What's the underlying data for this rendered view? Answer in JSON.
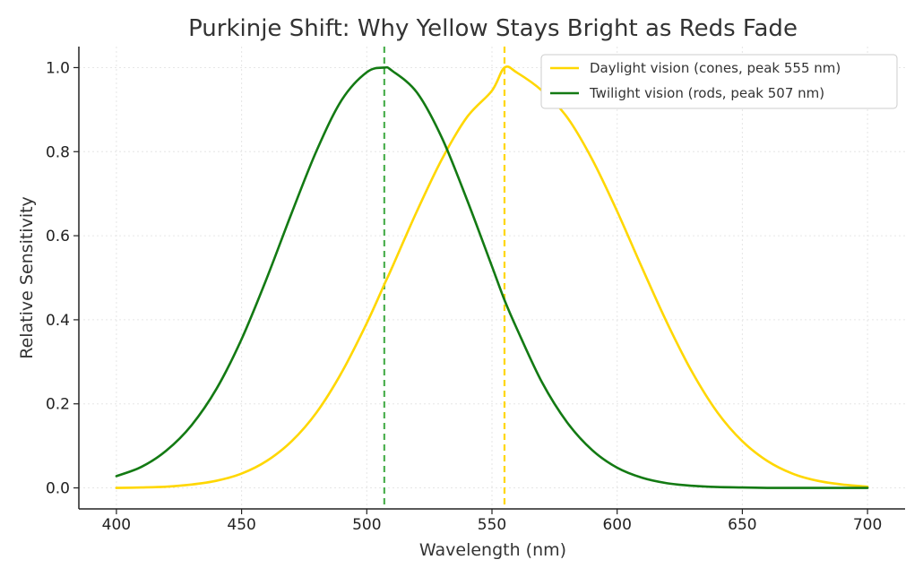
{
  "chart_data": {
    "type": "line",
    "title": "Purkinje Shift: Why Yellow Stays Bright as Reds Fade",
    "xlabel": "Wavelength (nm)",
    "ylabel": "Relative Sensitivity",
    "xlim": [
      385,
      715
    ],
    "ylim": [
      -0.05,
      1.05
    ],
    "x_ticks": [
      400,
      450,
      500,
      550,
      600,
      650,
      700
    ],
    "y_ticks": [
      0.0,
      0.2,
      0.4,
      0.6,
      0.8,
      1.0
    ],
    "x_tick_labels": [
      "400",
      "450",
      "500",
      "550",
      "600",
      "650",
      "700"
    ],
    "y_tick_labels": [
      "0.0",
      "0.2",
      "0.4",
      "0.6",
      "0.8",
      "1.0"
    ],
    "grid": true,
    "legend_position": "top-right",
    "x": [
      400,
      410,
      420,
      430,
      440,
      450,
      460,
      470,
      480,
      490,
      500,
      507,
      510,
      520,
      530,
      540,
      550,
      555,
      560,
      570,
      580,
      590,
      600,
      610,
      620,
      630,
      640,
      650,
      660,
      670,
      680,
      690,
      700
    ],
    "series": [
      {
        "name": "Daylight vision (cones, peak 555 nm)",
        "color": "#FFD700",
        "values": [
          0.0,
          0.001,
          0.003,
          0.008,
          0.017,
          0.034,
          0.064,
          0.111,
          0.18,
          0.275,
          0.392,
          0.484,
          0.523,
          0.658,
          0.782,
          0.882,
          0.945,
          1.0,
          0.988,
          0.945,
          0.882,
          0.782,
          0.658,
          0.523,
          0.392,
          0.275,
          0.18,
          0.111,
          0.064,
          0.034,
          0.017,
          0.008,
          0.003
        ]
      },
      {
        "name": "Twilight vision (rods, peak 507 nm)",
        "color": "#137a13",
        "values": [
          0.028,
          0.05,
          0.089,
          0.149,
          0.236,
          0.354,
          0.498,
          0.654,
          0.803,
          0.923,
          0.989,
          1.0,
          0.993,
          0.941,
          0.833,
          0.686,
          0.527,
          0.447,
          0.378,
          0.251,
          0.156,
          0.09,
          0.048,
          0.024,
          0.011,
          0.005,
          0.002,
          0.001,
          0.0,
          0.0,
          0.0,
          0.0,
          0.0
        ]
      }
    ],
    "reference_lines": [
      {
        "x": 507,
        "color": "#4caf50",
        "style": "dashed"
      },
      {
        "x": 555,
        "color": "#FFD700",
        "style": "dashed"
      }
    ]
  }
}
